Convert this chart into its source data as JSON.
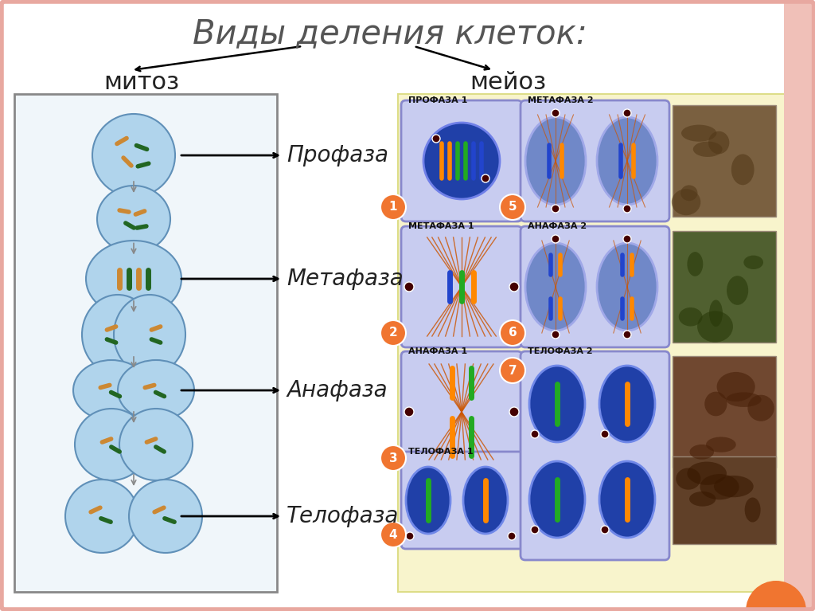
{
  "title": "Виды деления клеток:",
  "bg_color": "#ffffff",
  "border_color": "#e8a8a0",
  "mitosis_label": "митоз",
  "meiosis_label": "мейоз",
  "phase_labels": [
    "Профаза",
    "Метафаза",
    "Анафаза",
    "Телофаза"
  ],
  "meiosis_stage_labels": [
    "ПРОФАЗА 1",
    "МЕТАФАЗА 1",
    "АНАФАЗА 1",
    "ТЕЛОФАЗА 1",
    "МЕТАФАЗА 2",
    "АНАФАЗА 2",
    "ТЕЛОФАЗА 2"
  ],
  "meiosis_numbers": [
    "1",
    "2",
    "3",
    "4",
    "5",
    "6",
    "7"
  ],
  "orange_color": "#f07530",
  "cell_blue_dark": "#1830a0",
  "cell_blue_mid": "#4060c8",
  "cell_blue_light": "#8ab8e0",
  "cell_bg": "#c8ddf0",
  "stage_bg": "#c8d0f0",
  "stage_border": "#8090c8",
  "right_panel_bg": "#f8f4cc",
  "left_panel_bg": "#f0f6fa",
  "chrom_colors": [
    "#cc8833",
    "#226622",
    "#8833cc",
    "#cc3322"
  ],
  "photo_colors": [
    "#7a6040",
    "#506030",
    "#704830",
    "#604028"
  ]
}
